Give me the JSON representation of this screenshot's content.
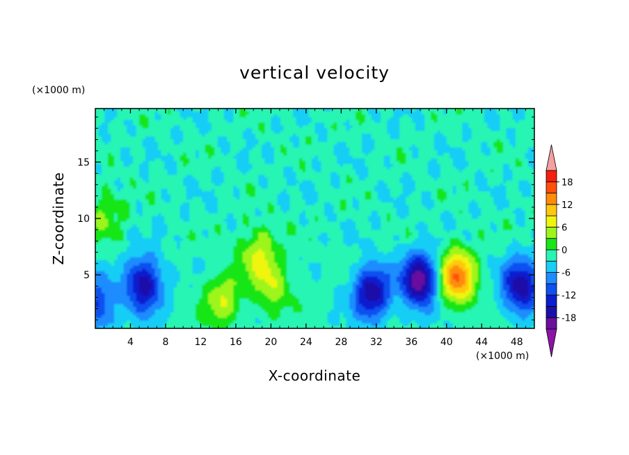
{
  "chart_data": {
    "type": "heatmap",
    "title": "vertical velocity",
    "xlabel": "X-coordinate",
    "ylabel": "Z-coordinate",
    "x_unit_label": "(×1000 m)",
    "y_unit_label": "(×1000 m)",
    "xlim": [
      0,
      50
    ],
    "ylim": [
      0.25,
      19.75
    ],
    "x_ticks": [
      4,
      8,
      12,
      16,
      20,
      24,
      28,
      32,
      36,
      40,
      44,
      48
    ],
    "y_ticks": [
      5,
      10,
      15
    ],
    "colorbar": {
      "levels": [
        -21,
        -18,
        -15,
        -12,
        -9,
        -6,
        -3,
        0,
        3,
        6,
        9,
        12,
        15,
        18,
        21
      ],
      "tick_labels": [
        "-18",
        "-12",
        "-6",
        "0",
        "6",
        "12",
        "18"
      ],
      "tick_values": [
        -18,
        -12,
        -6,
        0,
        6,
        12,
        18
      ],
      "colors": [
        "#6a0f9e",
        "#1c0fa8",
        "#0a1ecf",
        "#0f50f0",
        "#1e8cff",
        "#19cdf5",
        "#28f5b4",
        "#19e619",
        "#9ef51e",
        "#f0f50f",
        "#ffc80f",
        "#ff8c0a",
        "#ff500a",
        "#f51e0f"
      ],
      "under_color": "#8c14a8",
      "over_color": "#f5a0a0"
    },
    "features": [
      {
        "x": 0.2,
        "z": 2.3,
        "value": -10
      },
      {
        "x": 5.5,
        "z": 4.2,
        "value": -15
      },
      {
        "x": 1.2,
        "z": 10.5,
        "value": 5
      },
      {
        "x": 14.5,
        "z": 2.8,
        "value": 8
      },
      {
        "x": 18.5,
        "z": 7.0,
        "value": 8
      },
      {
        "x": 20.2,
        "z": 4.0,
        "value": 7
      },
      {
        "x": 31.5,
        "z": 3.5,
        "value": -15
      },
      {
        "x": 37.0,
        "z": 4.5,
        "value": -18
      },
      {
        "x": 41.2,
        "z": 4.8,
        "value": 17
      },
      {
        "x": 48.5,
        "z": 4.0,
        "value": -15
      },
      {
        "x": 26.0,
        "z": 3.5,
        "value": 0
      }
    ]
  }
}
